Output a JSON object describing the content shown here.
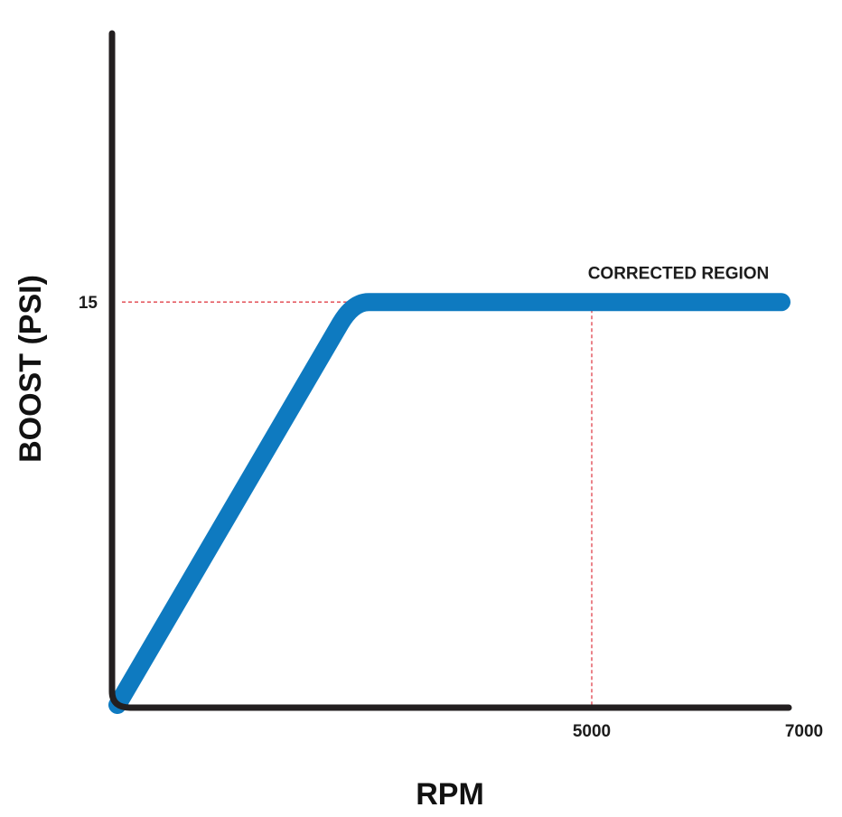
{
  "chart_data": {
    "type": "line",
    "xlabel": "RPM",
    "ylabel": "BOOST (PSI)",
    "xlim": [
      0,
      7000
    ],
    "ylim": [
      0,
      25
    ],
    "x_ticks": [
      {
        "value": 5000,
        "label": "5000"
      },
      {
        "value": 7000,
        "label": "7000"
      }
    ],
    "y_ticks": [
      {
        "value": 15,
        "label": "15"
      }
    ],
    "series": [
      {
        "x": [
          0,
          2350,
          2650,
          7000
        ],
        "y": [
          0,
          14.2,
          15,
          15
        ]
      }
    ],
    "reference_lines": [
      {
        "orientation": "horizontal",
        "value": 15
      },
      {
        "orientation": "vertical",
        "value": 5000
      }
    ],
    "annotations": [
      {
        "text": "CORRECTED REGION",
        "x": 5800,
        "y": 15.8
      }
    ],
    "colors": {
      "line": "#0e7ac0",
      "axis": "#231f20",
      "reference": "#e0404a"
    }
  }
}
